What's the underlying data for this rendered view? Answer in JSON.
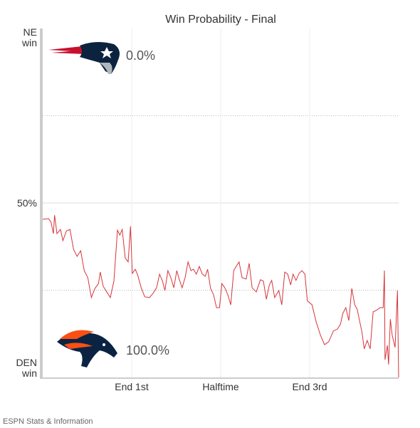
{
  "chart_data": {
    "type": "line",
    "title": "Win Probability - Final",
    "source": "ESPN Stats & Information",
    "annotations": [
      "0.0%",
      "100.0%"
    ],
    "color": "#d6353b",
    "xlim": [
      0,
      60
    ],
    "xticks": [
      {
        "value": 15,
        "label": "End 1st"
      },
      {
        "value": 30,
        "label": "Halftime"
      },
      {
        "value": 45,
        "label": "End 3rd"
      }
    ],
    "ylim": [
      0,
      100
    ],
    "yticks": [
      {
        "value": 100,
        "label": "NE win"
      },
      {
        "value": 50,
        "label": "50%"
      },
      {
        "value": 0,
        "label": "DEN win"
      }
    ],
    "minor_yticks": [
      25,
      75
    ],
    "grid": true,
    "x": [
      0,
      1.0,
      1.4,
      1.8,
      2.0,
      2.4,
      3.0,
      3.4,
      4.0,
      4.6,
      5.2,
      5.8,
      6.4,
      7.0,
      7.6,
      8.2,
      8.8,
      9.4,
      9.7,
      10.2,
      10.8,
      11.4,
      12.0,
      12.6,
      13.0,
      13.4,
      13.9,
      14.4,
      14.8,
      15.1,
      15.6,
      16.0,
      16.6,
      17.2,
      18.0,
      18.6,
      19.2,
      19.7,
      20.2,
      20.6,
      21.1,
      21.6,
      22.1,
      22.6,
      23.0,
      23.5,
      24.0,
      24.5,
      25.0,
      25.4,
      25.9,
      26.4,
      26.9,
      27.4,
      27.8,
      28.3,
      28.8,
      29.3,
      29.8,
      30.2,
      30.7,
      31.2,
      31.7,
      32.2,
      32.6,
      33.1,
      33.6,
      34.3,
      34.8,
      35.3,
      36.0,
      36.7,
      37.2,
      37.7,
      38.2,
      38.6,
      39.1,
      39.8,
      40.3,
      40.8,
      41.3,
      41.8,
      42.2,
      42.7,
      43.2,
      43.7,
      44.2,
      44.6,
      45.4,
      46.1,
      46.8,
      47.5,
      48.2,
      49.0,
      49.7,
      50.2,
      50.6,
      51.1,
      51.6,
      52.1,
      52.6,
      53.0,
      53.8,
      54.2,
      54.7,
      55.2,
      55.7,
      56.2,
      56.9,
      57.4,
      57.6,
      57.7,
      58.1,
      58.3,
      58.6,
      58.9,
      59.4,
      59.8,
      60.0
    ],
    "values": [
      45.3,
      45.5,
      44.5,
      41.2,
      46.5,
      41.2,
      42.4,
      39.2,
      42.0,
      42.4,
      36.7,
      34.7,
      36.3,
      30.6,
      28.6,
      22.9,
      25.5,
      26.9,
      30.2,
      26.1,
      24.5,
      22.9,
      27.6,
      42.2,
      40.8,
      42.4,
      34.3,
      33.1,
      43.3,
      29.8,
      31.0,
      29.4,
      25.7,
      23.1,
      22.9,
      24.1,
      25.7,
      29.6,
      27.6,
      24.9,
      30.6,
      28.6,
      25.7,
      30.6,
      28.2,
      25.7,
      28.6,
      33.1,
      30.6,
      31.0,
      29.6,
      31.8,
      29.6,
      29.0,
      31.0,
      25.5,
      23.7,
      20.0,
      20.0,
      26.9,
      25.7,
      23.7,
      20.8,
      30.6,
      31.8,
      33.1,
      28.6,
      28.2,
      32.7,
      25.7,
      24.5,
      28.0,
      27.6,
      22.4,
      26.5,
      27.8,
      22.9,
      24.9,
      20.8,
      30.2,
      29.6,
      26.5,
      29.6,
      27.8,
      29.8,
      30.6,
      29.6,
      22.0,
      20.8,
      15.9,
      12.2,
      9.4,
      10.2,
      13.3,
      13.9,
      15.3,
      18.4,
      20.0,
      16.3,
      25.5,
      20.8,
      19.6,
      13.1,
      8.2,
      10.6,
      8.2,
      18.8,
      19.2,
      20.0,
      20.0,
      30.6,
      5.1,
      9.2,
      3.7,
      16.7,
      12.2,
      8.6,
      24.9,
      0
    ]
  }
}
